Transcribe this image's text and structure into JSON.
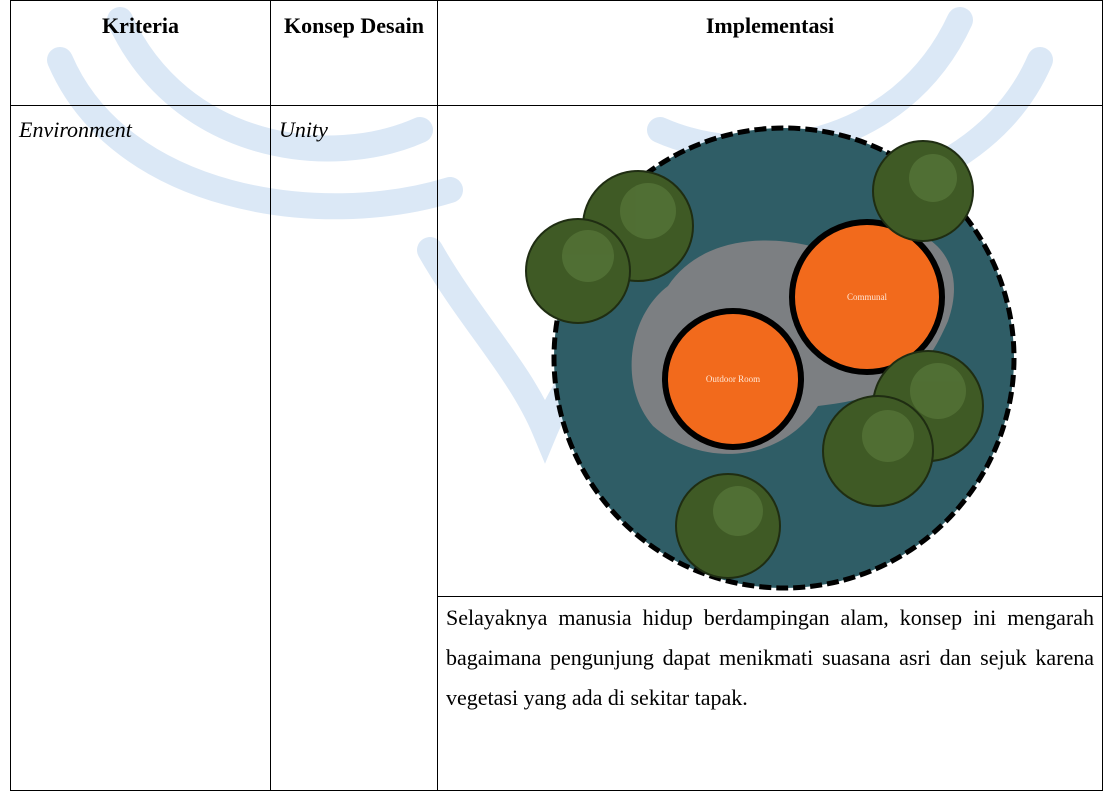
{
  "table": {
    "header": [
      "Kriteria",
      "Konsep Desain",
      "Implementasi"
    ],
    "rows": [
      {
        "kriteria": "Environment",
        "konsep": "Unity",
        "diagram": {
          "labels": [
            "Communal",
            "Outdoor Room"
          ]
        },
        "description": "Selayaknya manusia hidup berdampingan alam, konsep ini mengarah bagaimana pengunjung dapat menikmati suasana asri dan sejuk karena vegetasi yang ada di sekitar tapak."
      }
    ]
  }
}
